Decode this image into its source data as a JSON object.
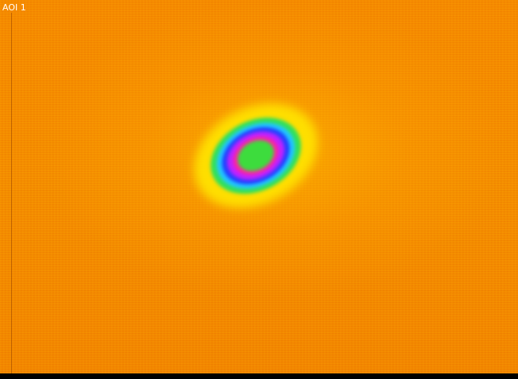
{
  "aoi": {
    "label": "AOI 1"
  },
  "colors": {
    "background_field": "#f28c00",
    "halo": "#ffe600",
    "ring_green": "#32e05a",
    "ring_cyan": "#22c8ff",
    "ring_blue": "#2040ff",
    "ring_violet": "#c020ff",
    "ring_magenta": "#ff20a0",
    "core": "#3cdc3c"
  }
}
